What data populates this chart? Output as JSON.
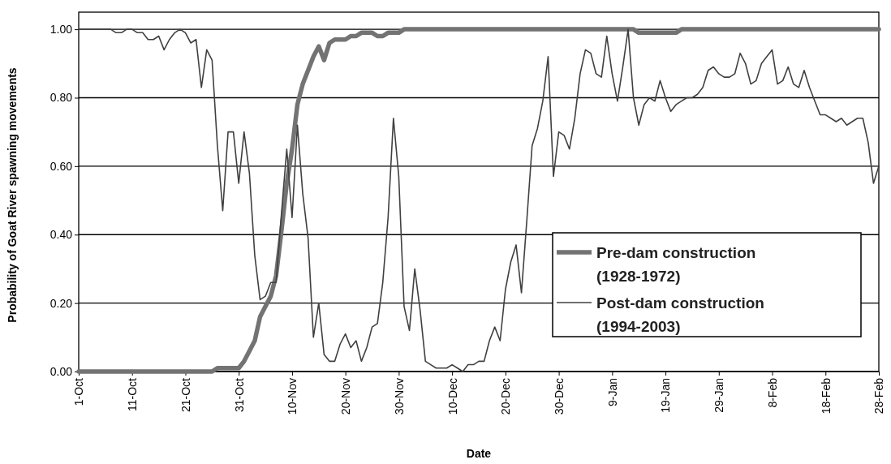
{
  "chart_data": {
    "type": "line",
    "xlabel": "Date",
    "ylabel": "Probability of Goat River spawning movements",
    "categories": [
      "1-Oct",
      null,
      null,
      null,
      null,
      null,
      null,
      null,
      null,
      null,
      "11-Oct",
      null,
      null,
      null,
      null,
      null,
      null,
      null,
      null,
      null,
      "21-Oct",
      null,
      null,
      null,
      null,
      null,
      null,
      null,
      null,
      null,
      "31-Oct",
      null,
      null,
      null,
      null,
      null,
      null,
      null,
      null,
      null,
      "10-Nov",
      null,
      null,
      null,
      null,
      null,
      null,
      null,
      null,
      null,
      "20-Nov",
      null,
      null,
      null,
      null,
      null,
      null,
      null,
      null,
      null,
      "30-Nov",
      null,
      null,
      null,
      null,
      null,
      null,
      null,
      null,
      null,
      "10-Dec",
      null,
      null,
      null,
      null,
      null,
      null,
      null,
      null,
      null,
      "20-Dec",
      null,
      null,
      null,
      null,
      null,
      null,
      null,
      null,
      null,
      "30-Dec",
      null,
      null,
      null,
      null,
      null,
      null,
      null,
      null,
      null,
      "9-Jan",
      null,
      null,
      null,
      null,
      null,
      null,
      null,
      null,
      null,
      "19-Jan",
      null,
      null,
      null,
      null,
      null,
      null,
      null,
      null,
      null,
      "29-Jan",
      null,
      null,
      null,
      null,
      null,
      null,
      null,
      null,
      null,
      "8-Feb",
      null,
      null,
      null,
      null,
      null,
      null,
      null,
      null,
      null,
      "18-Feb",
      null,
      null,
      null,
      null,
      null,
      null,
      null,
      null,
      null,
      "28-Feb"
    ],
    "ylim": [
      0,
      1.05
    ],
    "yticks": [
      {
        "value": 0,
        "label": "0.00"
      },
      {
        "value": 0.2,
        "label": "0.20"
      },
      {
        "value": 0.4,
        "label": "0.40"
      },
      {
        "value": 0.6,
        "label": "0.60"
      },
      {
        "value": 0.8,
        "label": "0.80"
      },
      {
        "value": 1,
        "label": "1.00"
      }
    ],
    "grid": "y",
    "legend": "bottom right",
    "series": [
      {
        "name": "Pre-dam construction (1928-1972)",
        "color": "#737373",
        "values": [
          0,
          0,
          0,
          0,
          0,
          0,
          0,
          0,
          0,
          0,
          0,
          0,
          0,
          0,
          0,
          0,
          0,
          0,
          0,
          0,
          0,
          0,
          0,
          0,
          0,
          0,
          0.01,
          0.01,
          0.01,
          0.01,
          0.01,
          0.03,
          0.06,
          0.09,
          0.16,
          0.19,
          0.22,
          0.28,
          0.41,
          0.55,
          0.65,
          0.78,
          0.84,
          0.88,
          0.92,
          0.95,
          0.91,
          0.96,
          0.97,
          0.97,
          0.97,
          0.98,
          0.98,
          0.99,
          0.99,
          0.99,
          0.98,
          0.98,
          0.99,
          0.99,
          0.99,
          1.0,
          1.0,
          1.0,
          1.0,
          1.0,
          1.0,
          1.0,
          1.0,
          1.0,
          1.0,
          1.0,
          1.0,
          1.0,
          1.0,
          1.0,
          1.0,
          1.0,
          1.0,
          1.0,
          1.0,
          1.0,
          1.0,
          1.0,
          1.0,
          1.0,
          1.0,
          1.0,
          1.0,
          1.0,
          1.0,
          1.0,
          1.0,
          1.0,
          1.0,
          1.0,
          1.0,
          1.0,
          1.0,
          1.0,
          1.0,
          1.0,
          1.0,
          1.0,
          1.0,
          0.99,
          0.99,
          0.99,
          0.99,
          0.99,
          0.99,
          0.99,
          0.99,
          1.0,
          1.0,
          1.0,
          1.0,
          1.0,
          1.0,
          1.0,
          1.0,
          1.0,
          1.0,
          1.0,
          1.0,
          1.0,
          1.0,
          1.0,
          1.0,
          1.0,
          1.0,
          1.0,
          1.0,
          1.0,
          1.0,
          1.0,
          1.0,
          1.0,
          1.0,
          1.0,
          1.0,
          1.0,
          1.0,
          1.0,
          1.0,
          1.0,
          1.0,
          1.0,
          1.0,
          1.0,
          1.0
        ]
      },
      {
        "name": "Post-dam construction (1994-2003)",
        "color": "#404040",
        "values": [
          1.0,
          1.0,
          1.0,
          1.0,
          1.0,
          1.0,
          1.0,
          0.99,
          0.99,
          1.0,
          1.0,
          0.99,
          0.99,
          0.97,
          0.97,
          0.98,
          0.94,
          0.97,
          0.99,
          1.0,
          0.99,
          0.96,
          0.97,
          0.83,
          0.94,
          0.91,
          0.66,
          0.47,
          0.7,
          0.7,
          0.55,
          0.7,
          0.58,
          0.34,
          0.21,
          0.22,
          0.26,
          0.26,
          0.46,
          0.65,
          0.45,
          0.72,
          0.52,
          0.39,
          0.1,
          0.2,
          0.05,
          0.03,
          0.03,
          0.08,
          0.11,
          0.07,
          0.09,
          0.03,
          0.07,
          0.13,
          0.14,
          0.26,
          0.45,
          0.74,
          0.57,
          0.19,
          0.12,
          0.3,
          0.18,
          0.03,
          0.02,
          0.01,
          0.01,
          0.01,
          0.02,
          0.01,
          0.0,
          0.02,
          0.02,
          0.03,
          0.03,
          0.09,
          0.13,
          0.09,
          0.24,
          0.32,
          0.37,
          0.23,
          0.44,
          0.66,
          0.71,
          0.79,
          0.92,
          0.57,
          0.7,
          0.69,
          0.65,
          0.74,
          0.87,
          0.94,
          0.93,
          0.87,
          0.86,
          0.98,
          0.87,
          0.79,
          0.89,
          1.0,
          0.8,
          0.72,
          0.78,
          0.8,
          0.79,
          0.85,
          0.8,
          0.76,
          0.78,
          0.79,
          0.8,
          0.8,
          0.81,
          0.83,
          0.88,
          0.89,
          0.87,
          0.86,
          0.86,
          0.87,
          0.93,
          0.9,
          0.84,
          0.85,
          0.9,
          0.92,
          0.94,
          0.84,
          0.85,
          0.89,
          0.84,
          0.83,
          0.88,
          0.83,
          0.79,
          0.75,
          0.75,
          0.74,
          0.73,
          0.74,
          0.72,
          0.73,
          0.74,
          0.74,
          0.67,
          0.55,
          0.6
        ]
      }
    ]
  }
}
